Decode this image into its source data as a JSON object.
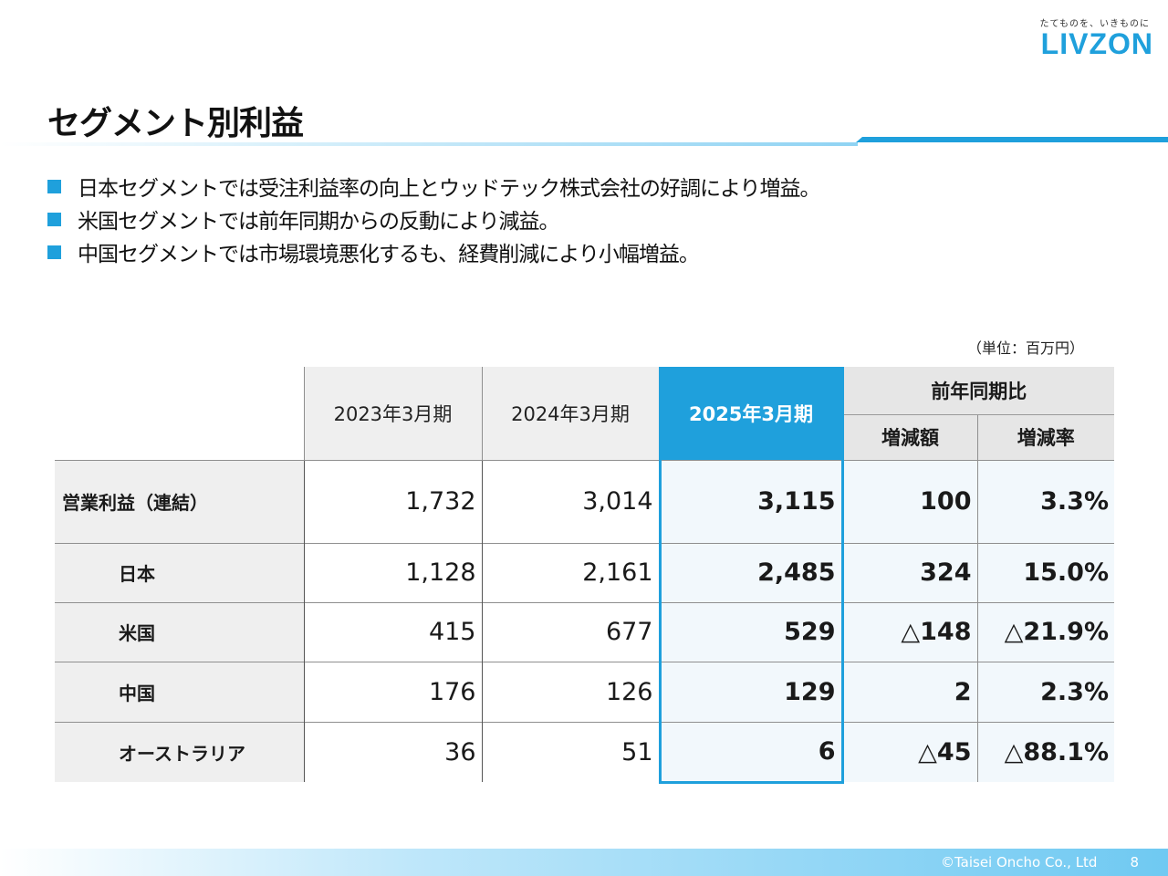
{
  "brand": {
    "tagline": "たてものを、いきものに",
    "logo": "LIVZON",
    "color": "#1fa0dc"
  },
  "title": "セグメント別利益",
  "bullets": [
    "日本セグメントでは受注利益率の向上とウッドテック株式会社の好調により増益。",
    "米国セグメントでは前年同期からの反動により減益。",
    "中国セグメントでは市場環境悪化するも、経費削減により小幅増益。"
  ],
  "unit_note": "（単位：百万円）",
  "table": {
    "columns": {
      "fy2023": "2023年3月期",
      "fy2024": "2024年3月期",
      "fy2025": "2025年3月期",
      "yoy_group": "前年同期比",
      "yoy_diff": "増減額",
      "yoy_rate": "増減率"
    },
    "rows": [
      {
        "label": "営業利益（連結）",
        "fy2023": "1,732",
        "fy2024": "3,014",
        "fy2025": "3,115",
        "diff": "100",
        "rate": "3.3%"
      },
      {
        "label": "日本",
        "fy2023": "1,128",
        "fy2024": "2,161",
        "fy2025": "2,485",
        "diff": "324",
        "rate": "15.0%"
      },
      {
        "label": "米国",
        "fy2023": "415",
        "fy2024": "677",
        "fy2025": "529",
        "diff": "△148",
        "rate": "△21.9%"
      },
      {
        "label": "中国",
        "fy2023": "176",
        "fy2024": "126",
        "fy2025": "129",
        "diff": "2",
        "rate": "2.3%"
      },
      {
        "label": "オーストラリア",
        "fy2023": "36",
        "fy2024": "51",
        "fy2025": "6",
        "diff": "△45",
        "rate": "△88.1%"
      }
    ]
  },
  "footer": {
    "copyright": "©Taisei Oncho Co., Ltd",
    "page": "8"
  }
}
